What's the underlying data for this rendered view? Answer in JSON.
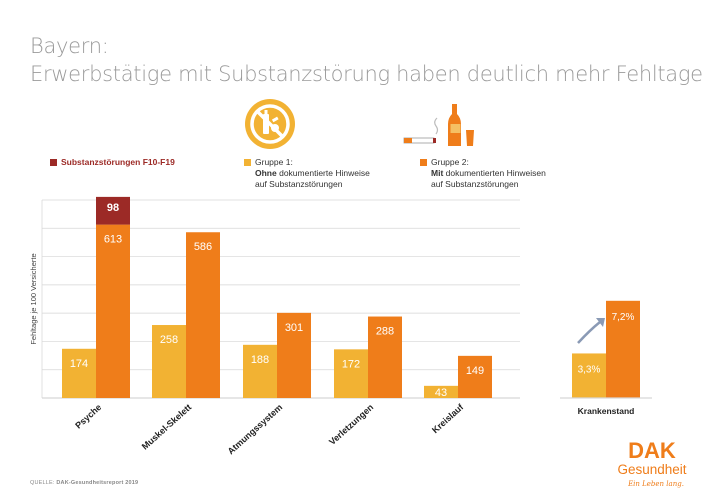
{
  "title": {
    "line1": "Bayern:",
    "line2": "Erwerbstätige mit Substanzstörung haben deutlich mehr Fehltage"
  },
  "legend": {
    "substance": "Substanzstörungen F10-F19",
    "group1_line1": "Gruppe 1:",
    "group1_bold": "Ohne",
    "group1_line2_rest": " dokumentierte Hinweise",
    "group1_line3": "auf Substanzstörungen",
    "group2_line1": "Gruppe 2:",
    "group2_bold": "Mit",
    "group2_line2_rest": " dokumentierten Hinweisen",
    "group2_line3": "auf Substanzstörungen"
  },
  "icons": {
    "group1_icon": "no-substances-icon",
    "group2_icon": "cigarette-alcohol-icon",
    "trend_icon": "trend-up-arrow-icon"
  },
  "colors": {
    "group1": "#f2b233",
    "group2": "#ef7d1a",
    "substance": "#9c2a26",
    "grid": "#d6d6d6"
  },
  "chart_data": [
    {
      "type": "bar",
      "ylabel": "Fehltage je 100 Versicherte",
      "categories": [
        "Psyche",
        "Muskel-Skelett",
        "Atmungssystem",
        "Verletzungen",
        "Kreislauf"
      ],
      "ylim": [
        0,
        700
      ],
      "grid": true,
      "series": [
        {
          "name": "Gruppe 1",
          "values": [
            174,
            258,
            188,
            172,
            43
          ]
        },
        {
          "name": "Gruppe 2",
          "values": [
            613,
            586,
            301,
            288,
            149
          ]
        },
        {
          "name": "Substanzstörungen F10-F19",
          "values": [
            98,
            null,
            null,
            null,
            null
          ]
        }
      ],
      "stacked_note": "Substanzstörungen F10-F19 stacked on Gruppe 2 (Psyche)"
    },
    {
      "type": "bar",
      "categories": [
        "Krankenstand"
      ],
      "series": [
        {
          "name": "Gruppe 1",
          "values": [
            3.3
          ],
          "labels": [
            "3,3%"
          ]
        },
        {
          "name": "Gruppe 2",
          "values": [
            7.2
          ],
          "labels": [
            "7,2%"
          ]
        }
      ]
    }
  ],
  "source": {
    "prefix": "QUELLE:",
    "text": "DAK-Gesundheitsreport 2019"
  },
  "logo": {
    "brand": "DAK",
    "name": "Gesundheit",
    "slogan": "Ein Leben lang."
  }
}
